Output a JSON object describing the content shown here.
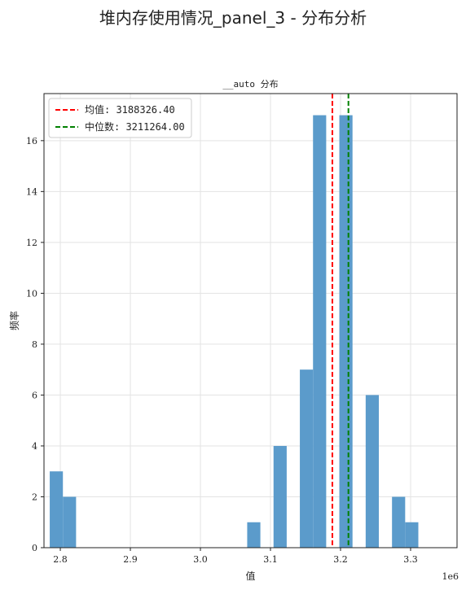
{
  "figure": {
    "suptitle": "堆内存使用情况_panel_3 - 分布分析"
  },
  "chart_data": {
    "type": "bar",
    "title": "__auto 分布",
    "xlabel": "值",
    "ylabel": "频率",
    "x_offset_label": "1e6",
    "xlim": [
      2.7767,
      3.3663
    ],
    "ylim": [
      0,
      17.85
    ],
    "xticks": [
      2.8,
      2.9,
      3.0,
      3.1,
      3.2,
      3.3
    ],
    "xtick_labels": [
      "2.8",
      "2.9",
      "3.0",
      "3.1",
      "3.2",
      "3.3"
    ],
    "yticks": [
      0,
      2,
      4,
      6,
      8,
      10,
      12,
      14,
      16
    ],
    "ytick_labels": [
      "0",
      "2",
      "4",
      "6",
      "8",
      "10",
      "12",
      "14",
      "16"
    ],
    "bin_start": 2.7849,
    "bin_width": 0.018791,
    "counts": [
      3,
      2,
      0,
      0,
      0,
      0,
      0,
      0,
      0,
      0,
      0,
      0,
      0,
      0,
      0,
      1,
      0,
      4,
      0,
      7,
      17,
      0,
      17,
      0,
      6,
      0,
      2,
      1
    ],
    "bar_color": "#5b9bcb",
    "grid": true,
    "vlines": [
      {
        "label": "均值: 3188326.40",
        "value": 3.18833,
        "color": "#ff0000",
        "style": "dashed"
      },
      {
        "label": "中位数: 3211264.00",
        "value": 3.21126,
        "color": "#008000",
        "style": "dashed"
      }
    ],
    "legend_position": "upper-left"
  }
}
